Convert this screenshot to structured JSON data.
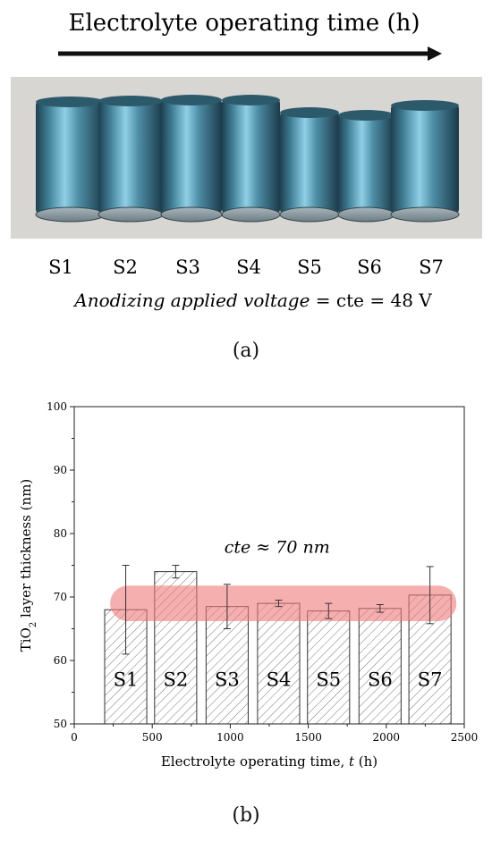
{
  "panel_a": {
    "header_title": "Electrolyte operating time (h)",
    "samples": [
      "S1",
      "S2",
      "S3",
      "S4",
      "S5",
      "S6",
      "S7"
    ],
    "voltage_label_italic": "Anodizing applied voltage",
    "voltage_label_rest": " = cte = 48 V",
    "caption": "(a)",
    "colors": {
      "cylinder": "#3f7d93",
      "highlight": "#8fd0e6",
      "shadow": "#1d4050",
      "background": "#d8d6d2"
    }
  },
  "panel_b": {
    "caption": "(b)",
    "band_annotation": "cte ≈ 70 nm",
    "colors": {
      "band": "#f07a7a",
      "bar_fill": "#ffffff",
      "bar_stroke": "#333333"
    }
  },
  "chart_data": {
    "type": "bar",
    "xlabel": "Electrolyte operating time, t (h)",
    "xlabel_parts": {
      "main": "Electrolyte operating time, ",
      "italic": "t",
      "unit": " (h)"
    },
    "ylabel_parts": {
      "main": "TiO",
      "sub": "2",
      "rest": " layer thickness (nm)"
    },
    "xlim": [
      0,
      2500
    ],
    "ylim": [
      50,
      100
    ],
    "xticks": [
      0,
      500,
      1000,
      1500,
      2000,
      2500
    ],
    "yticks": [
      50,
      60,
      70,
      80,
      90,
      100
    ],
    "grid": false,
    "bar_width": 270,
    "bars": [
      {
        "label": "S1",
        "x": 330,
        "y": 68,
        "err": 7
      },
      {
        "label": "S2",
        "x": 650,
        "y": 74,
        "err": 1
      },
      {
        "label": "S3",
        "x": 980,
        "y": 68.5,
        "err": 3.5
      },
      {
        "label": "S4",
        "x": 1310,
        "y": 69,
        "err": 0.5
      },
      {
        "label": "S5",
        "x": 1630,
        "y": 67.8,
        "err": 1.2
      },
      {
        "label": "S6",
        "x": 1960,
        "y": 68.2,
        "err": 0.6
      },
      {
        "label": "S7",
        "x": 2280,
        "y": 70.3,
        "err": 4.5
      }
    ],
    "band": {
      "ymin": 66.2,
      "ymax": 71.8,
      "xmin": 230,
      "xmax": 2450
    }
  }
}
